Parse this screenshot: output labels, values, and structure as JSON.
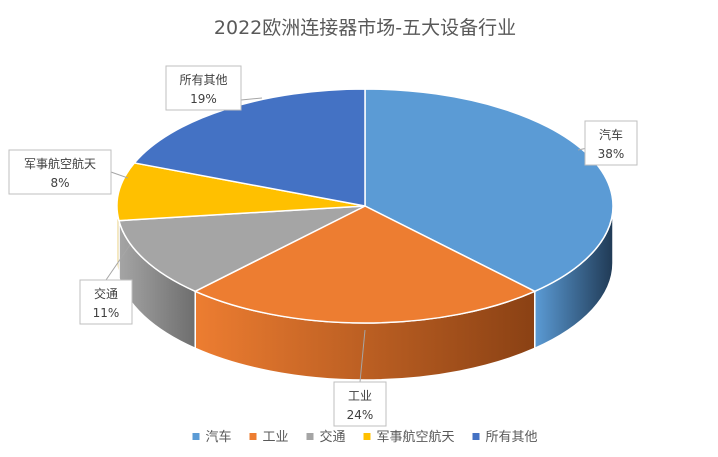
{
  "chart_data": {
    "type": "pie",
    "title": "2022欧洲连接器市场-五大设备行业",
    "legend_position": "bottom",
    "slices": [
      {
        "name": "汽车",
        "value": 38,
        "label": "38%",
        "color": "#5b9bd5",
        "side": "#203a55"
      },
      {
        "name": "工业",
        "value": 24,
        "label": "24%",
        "color": "#ed7d31",
        "side": "#8a4114"
      },
      {
        "name": "交通",
        "value": 11,
        "label": "11%",
        "color": "#a5a5a5",
        "side": "#6e6e6e"
      },
      {
        "name": "军事航空航天",
        "value": 8,
        "label": "8%",
        "color": "#ffc000",
        "side": "#9a7400"
      },
      {
        "name": "所有其他",
        "value": 19,
        "label": "19%",
        "color": "#4472c4",
        "side": "#253f6e"
      }
    ]
  }
}
